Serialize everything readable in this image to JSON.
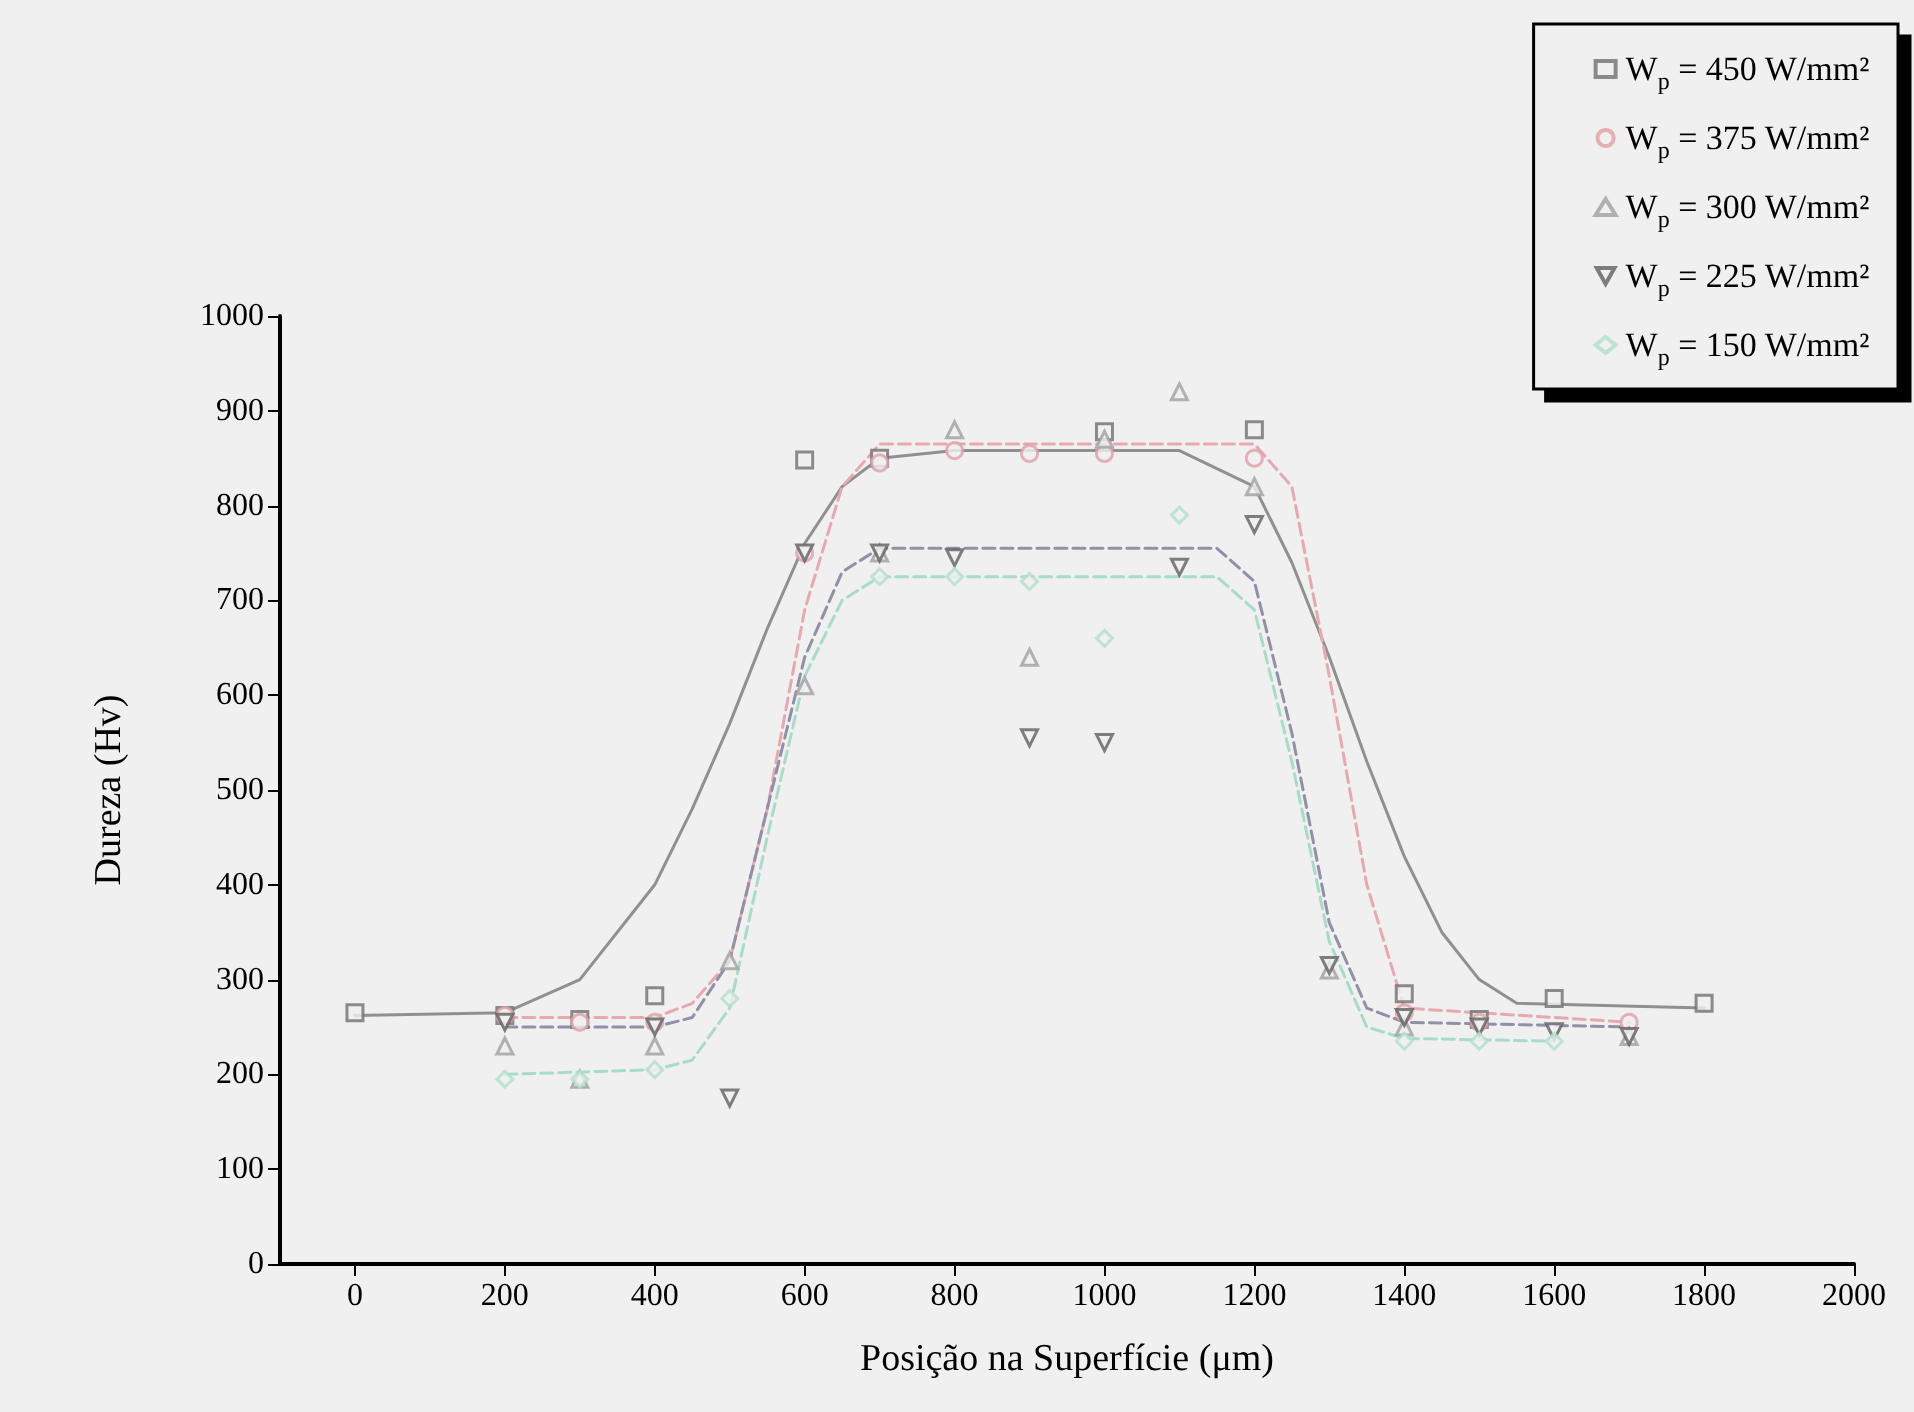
{
  "chart_data": {
    "type": "scatter",
    "xlabel": "Posição na Superfície (μm)",
    "ylabel": "Dureza (Hv)",
    "xlim": [
      -100,
      2000
    ],
    "xticks": [
      0,
      200,
      400,
      600,
      800,
      1000,
      1200,
      1400,
      1600,
      1800,
      2000
    ],
    "ylim": [
      0,
      1000
    ],
    "yticks": [
      0,
      100,
      200,
      300,
      400,
      500,
      600,
      700,
      800,
      900,
      1000
    ],
    "grid": false,
    "legend": "top right",
    "series": [
      {
        "name": "W$_{p}$ = 450 W/mm²",
        "color": "#707070",
        "marker": "square",
        "x": [
          0,
          200,
          300,
          400,
          600,
          700,
          1000,
          1200,
          1400,
          1500,
          1600,
          1800
        ],
        "values": [
          265,
          262,
          258,
          283,
          848,
          850,
          878,
          880,
          285,
          258,
          280,
          275
        ]
      },
      {
        "name": "W$_{p}$ = 375 W/mm²",
        "color": "#e0a0a8",
        "marker": "circle",
        "x": [
          200,
          300,
          400,
          600,
          700,
          800,
          900,
          1000,
          1200,
          1400,
          1500,
          1600,
          1700
        ],
        "values": [
          262,
          255,
          255,
          750,
          845,
          858,
          855,
          855,
          850,
          265,
          255,
          null,
          255
        ]
      },
      {
        "name": "W$_{p}$ = 300 W/mm²",
        "color": "#a0a0a0",
        "marker": "triangle",
        "x": [
          200,
          300,
          400,
          500,
          600,
          700,
          800,
          900,
          1000,
          1100,
          1200,
          1300,
          1400,
          1500,
          1600,
          1700
        ],
        "values": [
          230,
          195,
          230,
          320,
          610,
          750,
          880,
          640,
          870,
          920,
          820,
          310,
          250,
          null,
          null,
          240
        ]
      },
      {
        "name": "W$_{p}$ = 225 W/mm²",
        "color": "#606060",
        "marker": "triangle_down",
        "x": [
          200,
          400,
          500,
          600,
          700,
          800,
          900,
          1000,
          1100,
          1200,
          1300,
          1400,
          1500,
          1600,
          1700
        ],
        "values": [
          255,
          250,
          175,
          750,
          750,
          745,
          555,
          550,
          735,
          780,
          315,
          260,
          250,
          245,
          240
        ]
      },
      {
        "name": "W$_{p}$ = 150 W/mm²",
        "color": "#b0e0cc",
        "marker": "diamond",
        "x": [
          200,
          300,
          400,
          500,
          700,
          800,
          900,
          1000,
          1100,
          1400,
          1500,
          1600
        ],
        "values": [
          195,
          195,
          205,
          280,
          725,
          725,
          720,
          660,
          790,
          235,
          235,
          235
        ]
      },
      {
        "type": "line",
        "color": "#909090",
        "line_style": "solid",
        "marker": "none",
        "x": [
          0,
          200,
          300,
          400,
          450,
          500,
          550,
          600,
          650,
          700,
          800,
          1100,
          1200,
          1250,
          1300,
          1350,
          1400,
          1450,
          1500,
          1550,
          1800
        ],
        "values": [
          262,
          265,
          300,
          400,
          480,
          570,
          670,
          760,
          820,
          850,
          858,
          858,
          820,
          740,
          640,
          530,
          430,
          350,
          300,
          275,
          270
        ]
      },
      {
        "type": "line",
        "color": "#e8a8b0",
        "line_style": "dashed",
        "marker": "none",
        "x": [
          200,
          400,
          450,
          500,
          550,
          600,
          650,
          700,
          1200,
          1250,
          1300,
          1350,
          1400,
          1700
        ],
        "values": [
          260,
          260,
          275,
          320,
          480,
          690,
          820,
          865,
          865,
          820,
          620,
          400,
          270,
          255
        ]
      },
      {
        "type": "line",
        "color": "#9090a8",
        "line_style": "dashed",
        "marker": "none",
        "x": [
          200,
          400,
          450,
          500,
          550,
          600,
          650,
          700,
          1150,
          1200,
          1250,
          1300,
          1350,
          1400,
          1700
        ],
        "values": [
          250,
          250,
          260,
          320,
          480,
          640,
          730,
          755,
          755,
          720,
          560,
          360,
          270,
          255,
          250
        ]
      },
      {
        "type": "line",
        "color": "#a8dcc8",
        "line_style": "dashed",
        "marker": "none",
        "x": [
          200,
          400,
          450,
          500,
          550,
          600,
          650,
          700,
          1150,
          1200,
          1250,
          1300,
          1350,
          1400,
          1600
        ],
        "values": [
          200,
          205,
          215,
          270,
          450,
          620,
          700,
          725,
          725,
          690,
          530,
          340,
          250,
          238,
          235
        ]
      }
    ]
  }
}
